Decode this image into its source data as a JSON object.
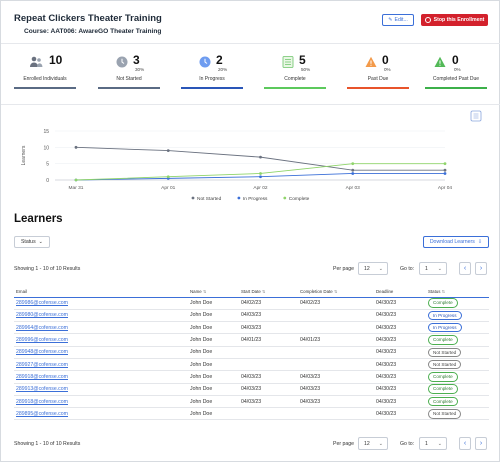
{
  "header": {
    "title": "Repeat Clickers Theater Training",
    "course": "Course: AAT006: AwareGO Theater Training",
    "edit_label": "Edit...",
    "stop_label": "Stop this Enrollment"
  },
  "stats": [
    {
      "value": "10",
      "pct": "",
      "label": "Enrolled Individuals",
      "icon": "people-icon",
      "color": "#5a6b84"
    },
    {
      "value": "3",
      "pct": "30%",
      "label": "Not Started",
      "icon": "clock-gray-icon",
      "color": "#5a6b84"
    },
    {
      "value": "2",
      "pct": "20%",
      "label": "In Progress",
      "icon": "clock-blue-icon",
      "color": "#2a56b8"
    },
    {
      "value": "5",
      "pct": "50%",
      "label": "Complete",
      "icon": "checklist-icon",
      "color": "#5cc95c"
    },
    {
      "value": "0",
      "pct": "0%",
      "label": "Past Due",
      "icon": "warning-orange-icon",
      "color": "#e8542b"
    },
    {
      "value": "0",
      "pct": "0%",
      "label": "Completed Past Due",
      "icon": "warning-green-icon",
      "color": "#3cb04a"
    }
  ],
  "chart_data": {
    "type": "line",
    "categories": [
      "Mar 31",
      "Apr 01",
      "Apr 02",
      "Apr 03",
      "Apr 04"
    ],
    "ylabel": "Learners",
    "ylim": [
      0,
      15
    ],
    "yticks": [
      "15",
      "10",
      "5",
      "0"
    ],
    "series": [
      {
        "name": "Not Started",
        "color": "#6b7280",
        "values": [
          10,
          9,
          7,
          3,
          3
        ]
      },
      {
        "name": "In Progress",
        "color": "#3b6fd8",
        "values": [
          0,
          0.5,
          1,
          2,
          2
        ]
      },
      {
        "name": "Complete",
        "color": "#8fd46a",
        "values": [
          0,
          1,
          2,
          5,
          5
        ]
      }
    ]
  },
  "learners": {
    "title": "Learners",
    "status_filter": "Status",
    "download_label": "Download Learners",
    "showing": "Showing 1 - 10 of 10 Results",
    "per_page_label": "Per page",
    "per_page_value": "12",
    "goto_label": "Go to:",
    "goto_value": "1",
    "columns": [
      "Email",
      "Name",
      "Start Date",
      "Completion Date",
      "Deadline",
      "Status"
    ],
    "rows": [
      {
        "email": "289986@cofense.com",
        "name": "John Doe",
        "start": "04/02/23",
        "completion": "04/02/23",
        "deadline": "04/30/23",
        "status": "Complete",
        "kind": "complete"
      },
      {
        "email": "289980@cofense.com",
        "name": "John Doe",
        "start": "04/03/23",
        "completion": "",
        "deadline": "04/30/23",
        "status": "In Progress",
        "kind": "progress"
      },
      {
        "email": "289964@cofense.com",
        "name": "John Doe",
        "start": "04/03/23",
        "completion": "",
        "deadline": "04/30/23",
        "status": "In Progress",
        "kind": "progress"
      },
      {
        "email": "289996@cofense.com",
        "name": "John Doe",
        "start": "04/01/23",
        "completion": "04/01/23",
        "deadline": "04/30/23",
        "status": "Complete",
        "kind": "complete"
      },
      {
        "email": "289948@cofense.com",
        "name": "John Doe",
        "start": "",
        "completion": "",
        "deadline": "04/30/23",
        "status": "Not Started",
        "kind": "notstarted"
      },
      {
        "email": "289927@cofense.com",
        "name": "John Doe",
        "start": "",
        "completion": "",
        "deadline": "04/30/23",
        "status": "Not Started",
        "kind": "notstarted"
      },
      {
        "email": "289918@cofense.com",
        "name": "John Doe",
        "start": "04/03/23",
        "completion": "04/03/23",
        "deadline": "04/30/23",
        "status": "Complete",
        "kind": "complete"
      },
      {
        "email": "289913@cofense.com",
        "name": "John Doe",
        "start": "04/03/23",
        "completion": "04/03/23",
        "deadline": "04/30/23",
        "status": "Complete",
        "kind": "complete"
      },
      {
        "email": "289918@cofense.com",
        "name": "John Doe",
        "start": "04/03/23",
        "completion": "04/03/23",
        "deadline": "04/30/23",
        "status": "Complete",
        "kind": "complete"
      },
      {
        "email": "289895@cofense.com",
        "name": "John Doe",
        "start": "",
        "completion": "",
        "deadline": "04/30/23",
        "status": "Not Started",
        "kind": "notstarted"
      }
    ]
  }
}
